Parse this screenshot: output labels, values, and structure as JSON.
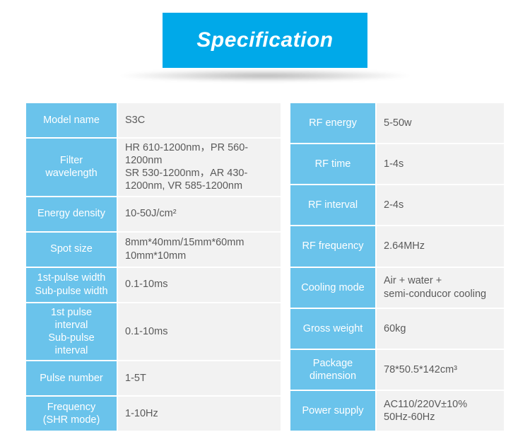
{
  "title": "Specification",
  "colors": {
    "title_bg": "#00a9e9",
    "header_bg": "#6ac3eb",
    "value_bg": "#f2f2f2",
    "header_text": "#ffffff",
    "value_text": "#5a5a5a"
  },
  "left": [
    {
      "label": "Model name",
      "value": "S3C"
    },
    {
      "label": "Filter\nwavelength",
      "value": "HR 610-1200nm，PR 560-1200nm\nSR 530-1200nm，AR 430-1200nm, VR 585-1200nm"
    },
    {
      "label": "Energy density",
      "value": "10-50J/cm²"
    },
    {
      "label": "Spot size",
      "value": "8mm*40mm/15mm*60mm\n10mm*10mm"
    },
    {
      "label": "1st-pulse width\nSub-pulse width",
      "value": "0.1-10ms"
    },
    {
      "label": "1st pulse interval\nSub-pulse interval",
      "value": "0.1-10ms"
    },
    {
      "label": "Pulse number",
      "value": "1-5T"
    },
    {
      "label": "Frequency\n(SHR mode)",
      "value": "1-10Hz"
    }
  ],
  "right": [
    {
      "label": "RF energy",
      "value": "5-50w"
    },
    {
      "label": "RF time",
      "value": "1-4s"
    },
    {
      "label": "RF interval",
      "value": "2-4s"
    },
    {
      "label": "RF frequency",
      "value": "2.64MHz"
    },
    {
      "label": "Cooling mode",
      "value": "Air + water +\nsemi-conducor cooling"
    },
    {
      "label": "Gross weight",
      "value": "60kg"
    },
    {
      "label": "Package\ndimension",
      "value": "78*50.5*142cm³"
    },
    {
      "label": "Power supply",
      "value": "AC110/220V±10%\n50Hz-60Hz"
    }
  ]
}
